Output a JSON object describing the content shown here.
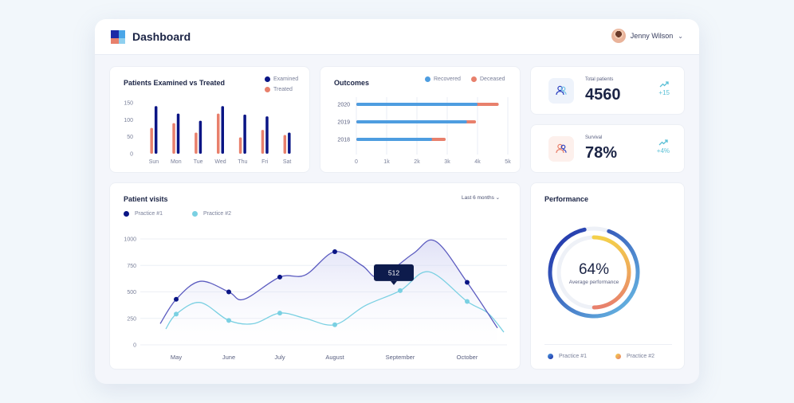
{
  "header": {
    "title": "Dashboard",
    "user_name": "Jenny Wilson"
  },
  "colors": {
    "navy": "#0a1585",
    "salmon": "#e8806c",
    "blue": "#4e9de0",
    "cyan": "#7ad0e2",
    "purple": "#5c5cc0"
  },
  "icons": {
    "logo": "dashboard-logo-icon",
    "dropdown": "chevron-down-icon",
    "patients": "users-icon",
    "survival": "users-icon",
    "trend": "trending-up-icon"
  },
  "examined_treated": {
    "title": "Patients Examined vs Treated",
    "legend": [
      "Examined",
      "Treated"
    ]
  },
  "outcomes": {
    "title": "Outcomes",
    "legend": [
      "Recovered",
      "Deceased"
    ]
  },
  "stats": {
    "total_label": "Total patients",
    "total_value": "4560",
    "total_trend": "+15",
    "survival_label": "Survival",
    "survival_value": "78%",
    "survival_trend": "+4%"
  },
  "visits": {
    "title": "Patient visits",
    "period": "Last 6 months",
    "legend": [
      "Practice #1",
      "Practice #2"
    ],
    "tooltip": "512"
  },
  "performance": {
    "title": "Performance",
    "value": "64%",
    "caption": "Average performance",
    "legend": [
      "Practice #1",
      "Practice #2"
    ]
  },
  "chart_data": [
    {
      "type": "bar",
      "title": "Patients Examined vs Treated",
      "categories": [
        "Sun",
        "Mon",
        "Tue",
        "Wed",
        "Thu",
        "Fri",
        "Sat"
      ],
      "series": [
        {
          "name": "Examined",
          "values": [
            140,
            118,
            97,
            140,
            115,
            110,
            62
          ]
        },
        {
          "name": "Treated",
          "values": [
            76,
            90,
            62,
            118,
            48,
            70,
            55
          ]
        }
      ],
      "ylim": [
        0,
        150
      ],
      "yticks": [
        0,
        50,
        100,
        150
      ],
      "legend": "top-right"
    },
    {
      "type": "bar",
      "orientation": "horizontal",
      "stacked": true,
      "title": "Outcomes",
      "categories": [
        "2020",
        "2019",
        "2018"
      ],
      "series": [
        {
          "name": "Recovered",
          "values": [
            4000,
            3650,
            2500
          ]
        },
        {
          "name": "Deceased",
          "values": [
            700,
            300,
            450
          ]
        }
      ],
      "xlim": [
        0,
        5000
      ],
      "xticks": [
        "0",
        "1k",
        "2k",
        "3k",
        "4k",
        "5k"
      ],
      "legend": "top-right"
    },
    {
      "type": "line",
      "title": "Patient visits",
      "categories": [
        "May",
        "June",
        "July",
        "August",
        "September",
        "October"
      ],
      "series": [
        {
          "name": "Practice #1",
          "values": [
            430,
            500,
            640,
            880,
            null,
            590
          ]
        },
        {
          "name": "Practice #2",
          "values": [
            290,
            230,
            300,
            190,
            512,
            410
          ]
        }
      ],
      "ylim": [
        0,
        1000
      ],
      "yticks": [
        0,
        250,
        500,
        750,
        1000
      ],
      "grid": true,
      "legend": "top-left",
      "annotations": [
        {
          "x": "September",
          "text": "512"
        }
      ]
    },
    {
      "type": "pie",
      "variant": "ring",
      "title": "Performance",
      "series": [
        {
          "name": "Practice #1",
          "value": 64
        },
        {
          "name": "Practice #2",
          "value": 64
        }
      ],
      "center_label": "64%",
      "center_caption": "Average performance",
      "legend": "bottom"
    }
  ]
}
